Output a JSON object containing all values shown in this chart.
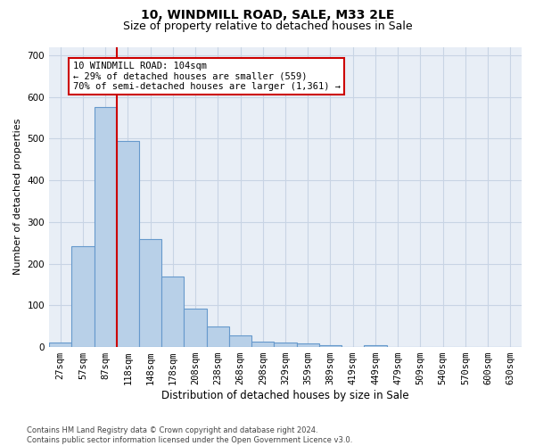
{
  "title1": "10, WINDMILL ROAD, SALE, M33 2LE",
  "title2": "Size of property relative to detached houses in Sale",
  "xlabel": "Distribution of detached houses by size in Sale",
  "ylabel": "Number of detached properties",
  "bin_labels": [
    "27sqm",
    "57sqm",
    "87sqm",
    "118sqm",
    "148sqm",
    "178sqm",
    "208sqm",
    "238sqm",
    "268sqm",
    "298sqm",
    "329sqm",
    "359sqm",
    "389sqm",
    "419sqm",
    "449sqm",
    "479sqm",
    "509sqm",
    "540sqm",
    "570sqm",
    "600sqm",
    "630sqm"
  ],
  "bar_values": [
    10,
    242,
    575,
    494,
    259,
    170,
    92,
    50,
    27,
    14,
    10,
    9,
    5,
    0,
    5,
    0,
    0,
    0,
    0,
    0,
    0
  ],
  "bar_color": "#b8d0e8",
  "bar_edge_color": "#6699cc",
  "bar_edge_width": 0.8,
  "grid_color": "#c8d4e4",
  "bg_color": "#e8eef6",
  "vline_color": "#cc0000",
  "vline_x_index": 2.5,
  "annotation_text_line1": "10 WINDMILL ROAD: 104sqm",
  "annotation_text_line2": "← 29% of detached houses are smaller (559)",
  "annotation_text_line3": "70% of semi-detached houses are larger (1,361) →",
  "ylim": [
    0,
    720
  ],
  "yticks": [
    0,
    100,
    200,
    300,
    400,
    500,
    600,
    700
  ],
  "footnote": "Contains HM Land Registry data © Crown copyright and database right 2024.\nContains public sector information licensed under the Open Government Licence v3.0.",
  "title1_fontsize": 10,
  "title2_fontsize": 9,
  "xlabel_fontsize": 8.5,
  "ylabel_fontsize": 8,
  "tick_fontsize": 7.5,
  "footnote_fontsize": 6,
  "ann_fontsize": 7.5
}
